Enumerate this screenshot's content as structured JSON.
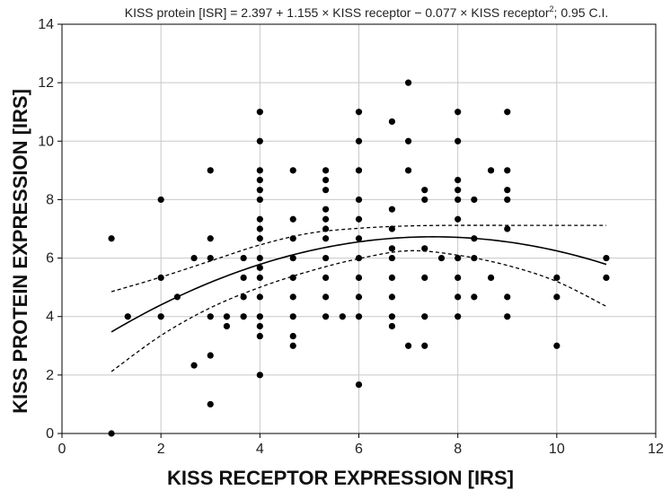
{
  "chart_data": {
    "type": "scatter",
    "title_parts": {
      "main": "KISS protein [ISR] = 2.397 + 1.155 × KISS receptor − 0.077 × KISS receptor",
      "sup": "2",
      "tail": "; 0.95 C.I."
    },
    "xlabel": "KISS RECEPTOR EXPRESSION [IRS]",
    "ylabel": "KISS PROTEIN EXPRESSION [IRS]",
    "xlim": [
      0,
      12
    ],
    "ylim": [
      0,
      14
    ],
    "xticks": [
      "0",
      "2",
      "4",
      "6",
      "8",
      "10",
      "12"
    ],
    "yticks": [
      "0",
      "2",
      "4",
      "6",
      "8",
      "10",
      "12",
      "14"
    ],
    "grid": true,
    "fit": {
      "intercept": 2.397,
      "linear": 1.155,
      "quadratic": -0.077,
      "x_range": [
        1,
        11
      ],
      "ci_upper": [
        [
          1,
          4.85
        ],
        [
          2,
          5.35
        ],
        [
          3,
          5.9
        ],
        [
          4,
          6.45
        ],
        [
          5,
          6.85
        ],
        [
          6,
          7.02
        ],
        [
          7,
          7.1
        ],
        [
          8,
          7.12
        ],
        [
          9,
          7.12
        ],
        [
          10,
          7.12
        ],
        [
          11,
          7.12
        ]
      ],
      "ci_lower": [
        [
          1,
          2.12
        ],
        [
          2,
          3.35
        ],
        [
          3,
          4.3
        ],
        [
          4,
          5.0
        ],
        [
          5,
          5.55
        ],
        [
          6,
          5.98
        ],
        [
          7,
          6.25
        ],
        [
          8,
          6.1
        ],
        [
          9,
          5.75
        ],
        [
          10,
          5.2
        ],
        [
          11,
          4.35
        ]
      ]
    },
    "points": [
      [
        1,
        0
      ],
      [
        1,
        6.67
      ],
      [
        1.33,
        4
      ],
      [
        2,
        8
      ],
      [
        2,
        5.33
      ],
      [
        2,
        4
      ],
      [
        2.33,
        4.67
      ],
      [
        2.67,
        6
      ],
      [
        2.67,
        2.33
      ],
      [
        3,
        9
      ],
      [
        3,
        6.67
      ],
      [
        3,
        6
      ],
      [
        3,
        4
      ],
      [
        3,
        2.67
      ],
      [
        3,
        1
      ],
      [
        3.33,
        4
      ],
      [
        3.33,
        3.67
      ],
      [
        3.67,
        6
      ],
      [
        3.67,
        5.33
      ],
      [
        3.67,
        4.67
      ],
      [
        3.67,
        4
      ],
      [
        4,
        11
      ],
      [
        4,
        10
      ],
      [
        4,
        9
      ],
      [
        4,
        8.67
      ],
      [
        4,
        8.33
      ],
      [
        4,
        8
      ],
      [
        4,
        7.33
      ],
      [
        4,
        7
      ],
      [
        4,
        6.67
      ],
      [
        4,
        6
      ],
      [
        4,
        5.67
      ],
      [
        4,
        5.33
      ],
      [
        4,
        4.67
      ],
      [
        4,
        4
      ],
      [
        4,
        3.67
      ],
      [
        4,
        3.33
      ],
      [
        4,
        2
      ],
      [
        4.67,
        9
      ],
      [
        4.67,
        7.33
      ],
      [
        4.67,
        6.67
      ],
      [
        4.67,
        6
      ],
      [
        4.67,
        5.33
      ],
      [
        4.67,
        4.67
      ],
      [
        4.67,
        4
      ],
      [
        4.67,
        3.33
      ],
      [
        4.67,
        3
      ],
      [
        5.33,
        9
      ],
      [
        5.33,
        8.67
      ],
      [
        5.33,
        8.33
      ],
      [
        5.33,
        7.67
      ],
      [
        5.33,
        7.33
      ],
      [
        5.33,
        7
      ],
      [
        5.33,
        6.67
      ],
      [
        5.33,
        6
      ],
      [
        5.33,
        5.33
      ],
      [
        5.33,
        4.67
      ],
      [
        5.33,
        4
      ],
      [
        5.67,
        4
      ],
      [
        6,
        11
      ],
      [
        6,
        10
      ],
      [
        6,
        9
      ],
      [
        6,
        8
      ],
      [
        6,
        7.33
      ],
      [
        6,
        6.67
      ],
      [
        6,
        6
      ],
      [
        6,
        5.33
      ],
      [
        6,
        4.67
      ],
      [
        6,
        4
      ],
      [
        6,
        1.67
      ],
      [
        6.67,
        10.67
      ],
      [
        6.67,
        7.67
      ],
      [
        6.67,
        7
      ],
      [
        6.67,
        6.33
      ],
      [
        6.67,
        6
      ],
      [
        6.67,
        5.33
      ],
      [
        6.67,
        4.67
      ],
      [
        6.67,
        4
      ],
      [
        6.67,
        3.67
      ],
      [
        7,
        12
      ],
      [
        7,
        10
      ],
      [
        7,
        9
      ],
      [
        7,
        3
      ],
      [
        7.33,
        8.33
      ],
      [
        7.33,
        8
      ],
      [
        7.33,
        6.33
      ],
      [
        7.33,
        5.33
      ],
      [
        7.33,
        4
      ],
      [
        7.33,
        3
      ],
      [
        7.67,
        6
      ],
      [
        8,
        11
      ],
      [
        8,
        10
      ],
      [
        8,
        8.67
      ],
      [
        8,
        8.33
      ],
      [
        8,
        8
      ],
      [
        8,
        7.33
      ],
      [
        8,
        6
      ],
      [
        8,
        5.33
      ],
      [
        8,
        4.67
      ],
      [
        8,
        4
      ],
      [
        8.33,
        8
      ],
      [
        8.33,
        6.67
      ],
      [
        8.33,
        6
      ],
      [
        8.33,
        4.67
      ],
      [
        8.67,
        9
      ],
      [
        8.67,
        5.33
      ],
      [
        9,
        11
      ],
      [
        9,
        9
      ],
      [
        9,
        8.33
      ],
      [
        9,
        8
      ],
      [
        9,
        7
      ],
      [
        9,
        4.67
      ],
      [
        9,
        4
      ],
      [
        10,
        5.33
      ],
      [
        10,
        4.67
      ],
      [
        10,
        3
      ],
      [
        11,
        6
      ],
      [
        11,
        5.33
      ]
    ]
  }
}
